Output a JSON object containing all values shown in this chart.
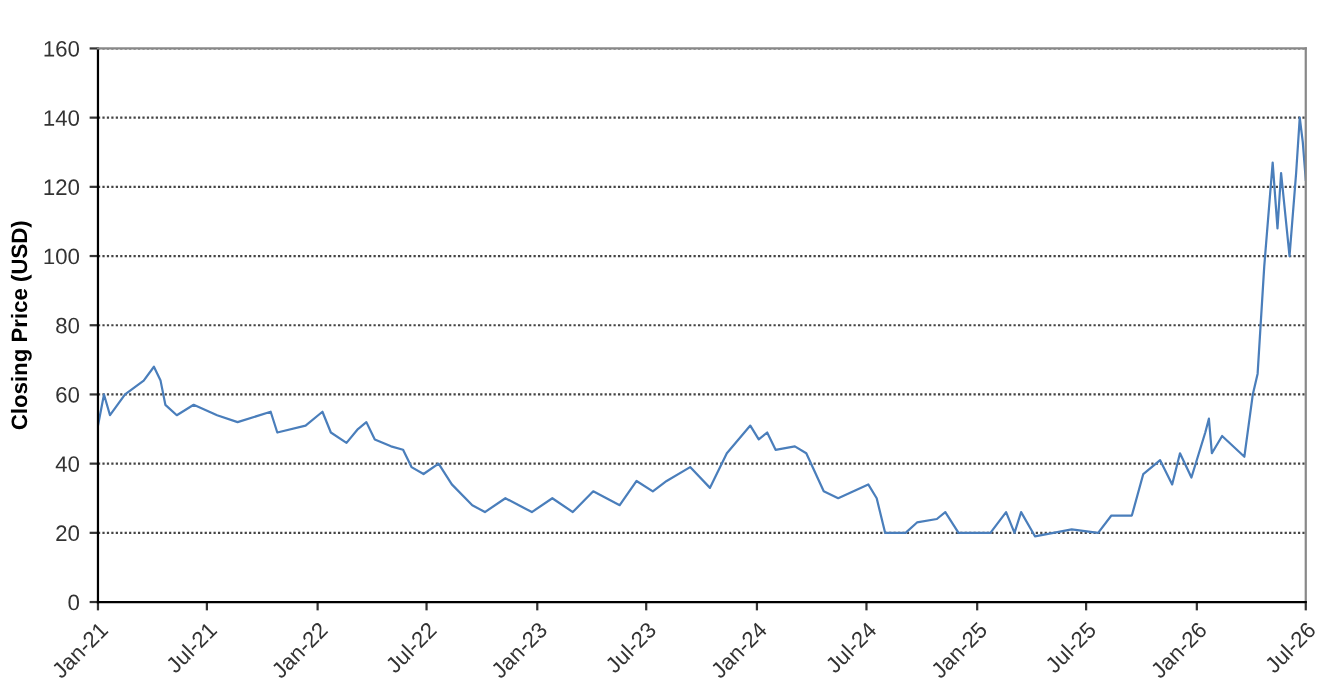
{
  "chart_data": {
    "type": "line",
    "ylabel": "Closing Price (USD)",
    "x": [
      "2021-01-01",
      "2021-01-11",
      "2021-01-21",
      "2021-02-15",
      "2021-03-18",
      "2021-04-04",
      "2021-04-15",
      "2021-04-23",
      "2021-05-12",
      "2021-06-09",
      "2021-07-18",
      "2021-08-21",
      "2021-10-15",
      "2021-10-26",
      "2021-12-12",
      "2022-01-09",
      "2022-01-23",
      "2022-02-18",
      "2022-03-09",
      "2022-03-23",
      "2022-04-06",
      "2022-05-03",
      "2022-05-23",
      "2022-06-06",
      "2022-06-26",
      "2022-07-21",
      "2022-08-12",
      "2022-09-15",
      "2022-10-06",
      "2022-11-09",
      "2022-12-23",
      "2023-01-26",
      "2023-03-01",
      "2023-04-04",
      "2023-05-18",
      "2023-06-15",
      "2023-07-12",
      "2023-08-04",
      "2023-09-12",
      "2023-10-15",
      "2023-11-12",
      "2023-12-21",
      "2024-01-04",
      "2024-01-18",
      "2024-02-01",
      "2024-03-04",
      "2024-03-23",
      "2024-04-21",
      "2024-05-15",
      "2024-07-04",
      "2024-07-18",
      "2024-08-01",
      "2024-09-04",
      "2024-09-23",
      "2024-10-26",
      "2024-11-09",
      "2024-12-01",
      "2025-01-23",
      "2025-02-18",
      "2025-03-04",
      "2025-03-15",
      "2025-04-07",
      "2025-06-07",
      "2025-07-21",
      "2025-08-12",
      "2025-09-15",
      "2025-10-04",
      "2025-11-01",
      "2025-11-21",
      "2025-12-04",
      "2025-12-23",
      "2026-01-15",
      "2026-01-21",
      "2026-01-26",
      "2026-02-12",
      "2026-03-21",
      "2026-04-04",
      "2026-04-12",
      "2026-04-23",
      "2026-05-07",
      "2026-05-15",
      "2026-05-21",
      "2026-06-04",
      "2026-06-15",
      "2026-06-21",
      "2026-06-26",
      "2026-07-01"
    ],
    "series": [
      {
        "color": "#4a7ebb",
        "values": [
          51,
          60,
          54,
          60,
          64,
          68,
          64,
          57,
          54,
          57,
          54,
          52,
          55,
          49,
          51,
          55,
          49,
          46,
          50,
          52,
          47,
          45,
          44,
          39,
          37,
          40,
          34,
          28,
          26,
          30,
          26,
          30,
          26,
          32,
          28,
          35,
          32,
          35,
          39,
          33,
          43,
          51,
          47,
          49,
          44,
          45,
          43,
          32,
          30,
          34,
          30,
          20,
          20,
          23,
          24,
          26,
          20,
          20,
          26,
          20,
          26,
          19,
          21,
          20,
          25,
          25,
          37,
          41,
          34,
          43,
          36,
          49,
          53,
          43,
          48,
          42,
          60,
          66,
          97,
          127,
          108,
          124,
          100,
          124,
          140,
          133,
          122
        ]
      }
    ],
    "xlim": [
      "2021-01-01",
      "2026-07-01"
    ],
    "xticks": [
      {
        "value": "2021-01-01",
        "label": "Jan-21"
      },
      {
        "value": "2021-07-01",
        "label": "Jul-21"
      },
      {
        "value": "2022-01-01",
        "label": "Jan-22"
      },
      {
        "value": "2022-07-01",
        "label": "Jul-22"
      },
      {
        "value": "2023-01-01",
        "label": "Jan-23"
      },
      {
        "value": "2023-07-01",
        "label": "Jul-23"
      },
      {
        "value": "2024-01-01",
        "label": "Jan-24"
      },
      {
        "value": "2024-07-01",
        "label": "Jul-24"
      },
      {
        "value": "2025-01-01",
        "label": "Jan-25"
      },
      {
        "value": "2025-07-01",
        "label": "Jul-25"
      },
      {
        "value": "2026-01-01",
        "label": "Jan-26"
      },
      {
        "value": "2026-07-01",
        "label": "Jul-26"
      }
    ],
    "ylim": [
      0,
      160
    ],
    "yticks": [
      0,
      20,
      40,
      60,
      80,
      100,
      120,
      140,
      160
    ],
    "grid": "y",
    "line_style": "solid",
    "marker": "none"
  }
}
